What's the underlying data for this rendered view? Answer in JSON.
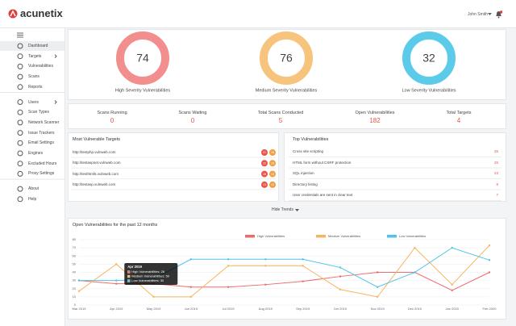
{
  "header": {
    "logo": "acunetix",
    "user": "John Smith"
  },
  "sidebar": {
    "groups": [
      [
        "Dashboard",
        "Targets",
        "Vulnerabilities",
        "Scans",
        "Reports"
      ],
      [
        "Users",
        "Scan Types",
        "Network Scanner",
        "Issue Trackers",
        "Email Settings",
        "Engines",
        "Excluded Hours",
        "Proxy Settings"
      ],
      [
        "About",
        "Help"
      ]
    ]
  },
  "severity": [
    {
      "value": 74,
      "label": "High Severity Vulnerabilities",
      "color": "#f28e8e"
    },
    {
      "value": 76,
      "label": "Medium Severity Vulnerabilities",
      "color": "#f7c47e"
    },
    {
      "value": 32,
      "label": "Low Severity Vulnerabilities",
      "color": "#5ccbea"
    }
  ],
  "stats": [
    {
      "label": "Scans Running",
      "value": 0
    },
    {
      "label": "Scans Waiting",
      "value": 0
    },
    {
      "label": "Total Scans Conducted",
      "value": 5
    },
    {
      "label": "Open Vulnerabilities",
      "value": 182
    },
    {
      "label": "Total Targets",
      "value": 4
    }
  ],
  "targets": {
    "title": "Most Vulnerable Targets",
    "rows": [
      {
        "url": "http://testphp.vulnweb.com",
        "high": 21,
        "medium": 16
      },
      {
        "url": "http://testaspnet.vulnweb.com",
        "high": 22,
        "medium": 15
      },
      {
        "url": "http://testhtml5.vulnweb.com",
        "high": 18,
        "medium": 13
      },
      {
        "url": "http://testasp.vulnweb.com",
        "high": 13,
        "medium": 12
      }
    ]
  },
  "top_vulnerabilities": {
    "title": "Top Vulnerabilities",
    "rows": [
      {
        "name": "Cross site scripting",
        "count": 25
      },
      {
        "name": "HTML form without CSRF protection",
        "count": 25
      },
      {
        "name": "SQL injection",
        "count": 23
      },
      {
        "name": "Directory listing",
        "count": 8
      },
      {
        "name": "User credentials are sent in clear text",
        "count": 7
      }
    ]
  },
  "toggle": "Hide Trends",
  "trends_chart": {
    "type": "line",
    "title": "Open Vulnerabilities for the past 12 months",
    "categories": [
      "Mar 2019",
      "Apr 2019",
      "May 2019",
      "Jun 2019",
      "Jul 2019",
      "Aug 2019",
      "Sep 2019",
      "Oct 2019",
      "Nov 2019",
      "Dec 2019",
      "Jan 2020",
      "Feb 2020"
    ],
    "series": [
      {
        "name": "High Vulnerabilities",
        "color": "#ee6b6b",
        "values": [
          30,
          26,
          26,
          22,
          22,
          25,
          29,
          35,
          40,
          40,
          18,
          40
        ]
      },
      {
        "name": "Medium Vulnerabilities",
        "color": "#f5b45f",
        "values": [
          17,
          50,
          10,
          10,
          48,
          48,
          48,
          19,
          10,
          70,
          25,
          73
        ]
      },
      {
        "name": "Low Vulnerabilities",
        "color": "#4fc3e8",
        "values": [
          30,
          30,
          32,
          56,
          56,
          56,
          56,
          46,
          22,
          40,
          70,
          55
        ]
      }
    ],
    "ylim": [
      0,
      80
    ],
    "yticks": [
      0,
      10,
      20,
      30,
      40,
      50,
      60,
      70,
      80
    ],
    "grid": true,
    "tooltip": {
      "category": "Apr 2019",
      "lines": [
        "High Vulnerabilities: 26",
        "Medium Vulnerabilities: 50",
        "Low Vulnerabilities: 30"
      ]
    }
  }
}
